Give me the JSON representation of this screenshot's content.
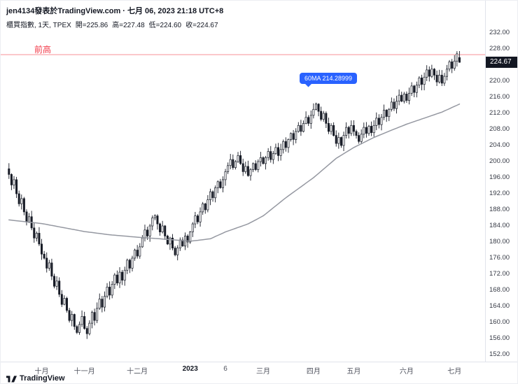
{
  "header": {
    "byline": "jen4134發表於TradingView.com · 七月 06, 2023 21:18 UTC+8",
    "symbol": "櫃買指數, 1天, TPEX",
    "ohlc": [
      {
        "label": "開",
        "value": "225.86"
      },
      {
        "label": "高",
        "value": "227.48"
      },
      {
        "label": "低",
        "value": "224.60"
      },
      {
        "label": "收",
        "value": "224.67"
      }
    ]
  },
  "annotations": {
    "prev_high_label": "前高",
    "prev_high_price": 226.6,
    "ma_tooltip": "60MA 214.28999"
  },
  "price_axis": {
    "max": 232,
    "min": 152,
    "step": 4,
    "last_price": 224.67,
    "last_price_label": "224.67"
  },
  "time_axis": {
    "ticks": [
      {
        "label": "十月",
        "bar": 13
      },
      {
        "label": "十一月",
        "bar": 30
      },
      {
        "label": "十二月",
        "bar": 51
      },
      {
        "label": "2023",
        "bar": 72,
        "year": true
      },
      {
        "label": "6",
        "bar": 86
      },
      {
        "label": "三月",
        "bar": 101
      },
      {
        "label": "四月",
        "bar": 121
      },
      {
        "label": "五月",
        "bar": 137
      },
      {
        "label": "六月",
        "bar": 158
      },
      {
        "label": "七月",
        "bar": 177
      }
    ]
  },
  "footer": {
    "logo_text": "TradingView"
  },
  "colors": {
    "accent_blue": "#2962ff",
    "prev_high_red": "#f23645",
    "ma_gray": "#9598a1",
    "candle_dark": "#161a25",
    "badge_bg": "#131722"
  },
  "chart_data": {
    "type": "candlestick",
    "title": "櫃買指數 TPEX 1天",
    "ylabel": "price",
    "y_range": [
      152,
      232
    ],
    "slots": 188,
    "ohlc_last": {
      "open": 225.86,
      "high": 227.48,
      "low": 224.6,
      "close": 224.67
    },
    "ma60_last": 214.28999,
    "closes": [
      196.8,
      194.2,
      195.5,
      192.0,
      189.5,
      190.8,
      187.5,
      185.0,
      186.3,
      183.5,
      181.0,
      182.2,
      179.5,
      177.0,
      176.0,
      173.5,
      174.8,
      171.5,
      169.0,
      170.3,
      167.0,
      164.5,
      166.0,
      163.0,
      160.5,
      162.0,
      159.0,
      157.5,
      159.5,
      161.5,
      158.5,
      157.2,
      159.8,
      162.5,
      160.5,
      163.5,
      165.8,
      163.8,
      166.5,
      168.8,
      166.8,
      169.5,
      171.8,
      169.8,
      172.5,
      170.5,
      173.0,
      175.5,
      173.5,
      176.0,
      178.0,
      176.5,
      178.8,
      181.0,
      183.0,
      181.5,
      184.0,
      186.0,
      186.5,
      184.5,
      182.5,
      184.0,
      181.5,
      179.5,
      181.0,
      178.5,
      176.8,
      178.5,
      180.5,
      179.0,
      181.5,
      180.0,
      182.5,
      184.5,
      186.5,
      185.0,
      187.5,
      189.5,
      188.0,
      190.5,
      192.5,
      191.0,
      193.5,
      195.0,
      193.5,
      195.5,
      197.5,
      199.0,
      200.5,
      198.5,
      200.0,
      201.5,
      199.5,
      197.5,
      198.8,
      196.5,
      198.0,
      199.5,
      198.0,
      200.0,
      201.0,
      199.5,
      201.0,
      202.5,
      200.5,
      202.0,
      203.5,
      201.5,
      203.0,
      205.0,
      203.5,
      205.5,
      207.0,
      205.5,
      207.5,
      209.0,
      207.5,
      209.5,
      211.0,
      209.5,
      211.5,
      213.0,
      214.3,
      212.5,
      210.5,
      212.0,
      209.5,
      207.5,
      209.0,
      206.5,
      204.5,
      206.0,
      204.0,
      206.5,
      208.5,
      207.0,
      209.0,
      207.5,
      206.5,
      205.0,
      206.8,
      208.5,
      207.0,
      208.8,
      207.2,
      209.0,
      210.8,
      209.2,
      211.0,
      212.8,
      211.2,
      213.0,
      214.8,
      213.2,
      215.0,
      216.5,
      215.0,
      216.8,
      215.2,
      217.0,
      218.8,
      217.2,
      219.0,
      220.8,
      219.2,
      221.0,
      222.8,
      221.2,
      223.0,
      221.5,
      219.8,
      221.5,
      219.5,
      221.2,
      223.0,
      224.8,
      223.2,
      225.0,
      226.8,
      224.67
    ],
    "ma60_anchors": [
      [
        0,
        185.5
      ],
      [
        13,
        184.6
      ],
      [
        30,
        182.6
      ],
      [
        40,
        181.8
      ],
      [
        51,
        181.2
      ],
      [
        60,
        180.8
      ],
      [
        72,
        180.2
      ],
      [
        80,
        180.8
      ],
      [
        86,
        182.5
      ],
      [
        95,
        184.5
      ],
      [
        101,
        186.5
      ],
      [
        110,
        191.0
      ],
      [
        121,
        196.0
      ],
      [
        130,
        200.8
      ],
      [
        137,
        203.5
      ],
      [
        145,
        206.0
      ],
      [
        152,
        207.8
      ],
      [
        158,
        209.3
      ],
      [
        165,
        210.8
      ],
      [
        172,
        212.3
      ],
      [
        179,
        214.29
      ]
    ]
  }
}
